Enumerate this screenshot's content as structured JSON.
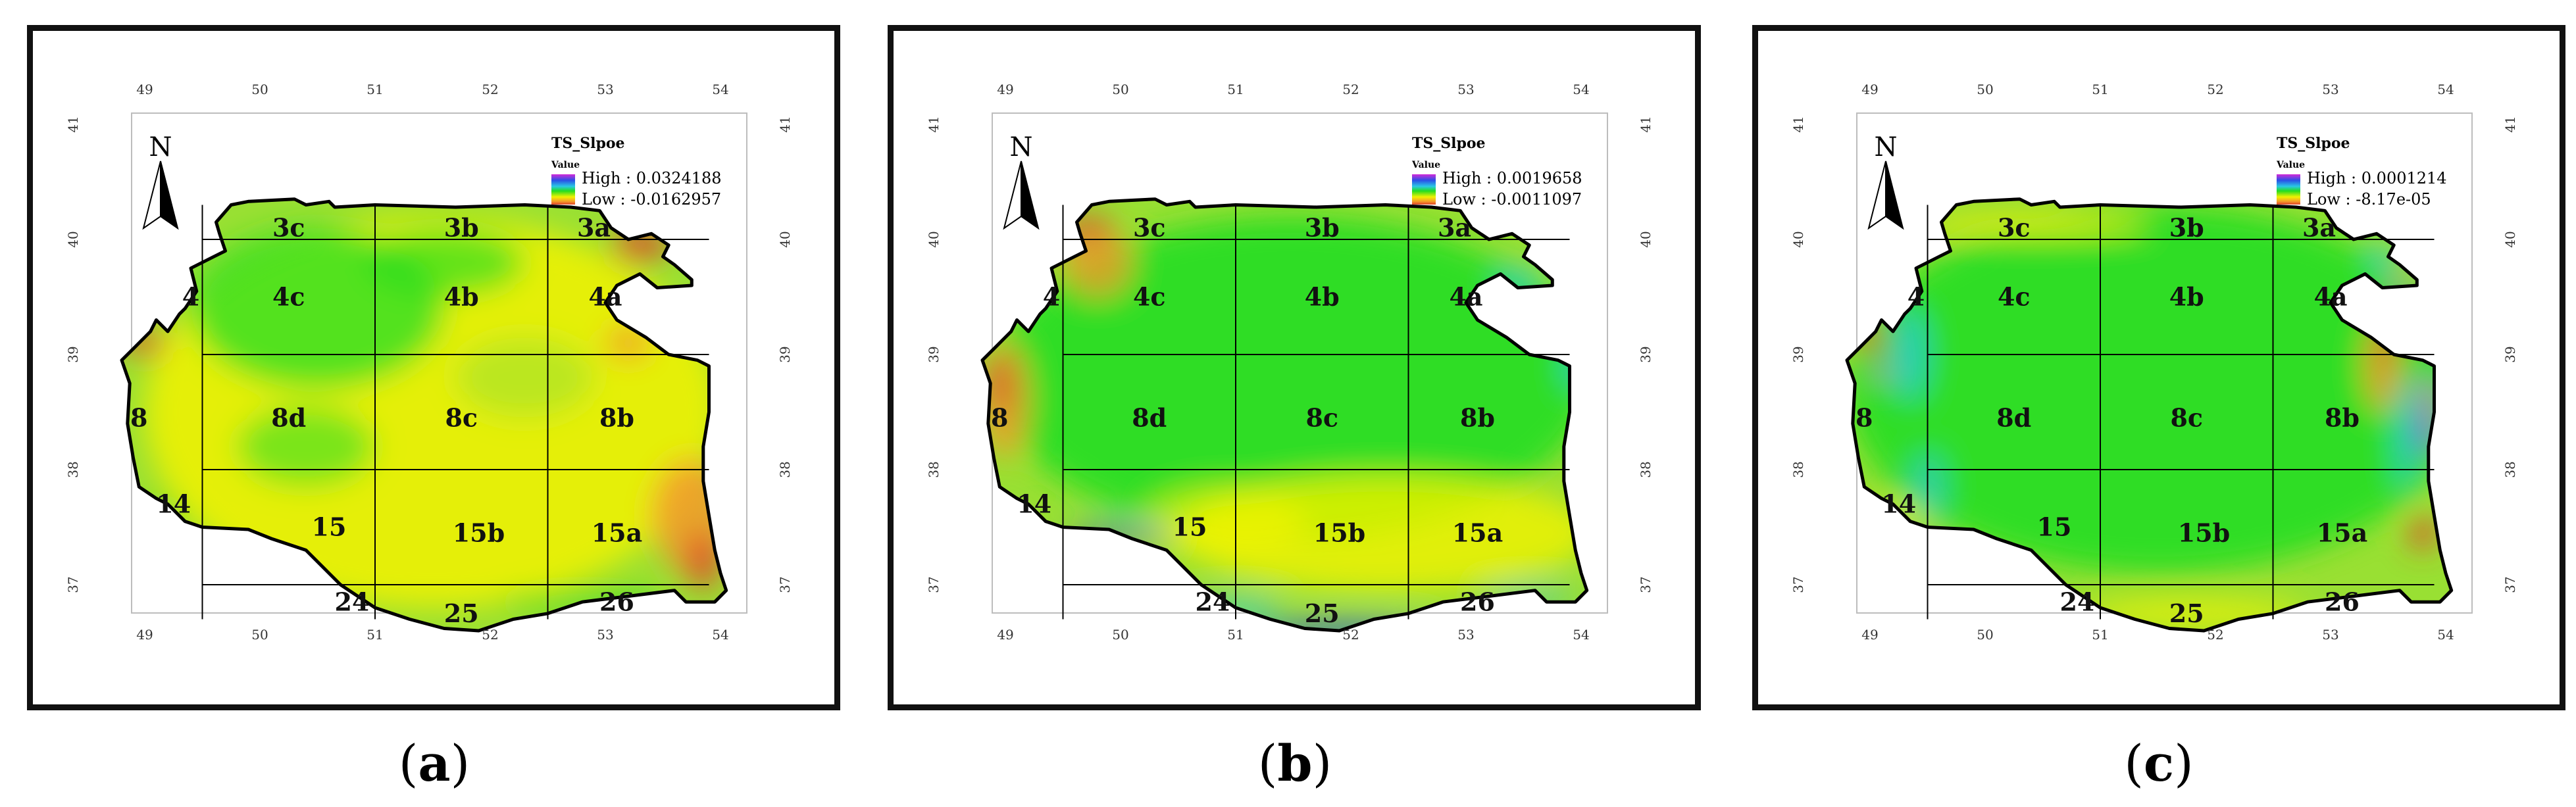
{
  "colors": {
    "green": "#22dd22",
    "lime": "#99e033",
    "yellow": "#f2f200",
    "orange": "#f39a2a",
    "red": "#e0432a",
    "cyan": "#29c9e4",
    "blue": "#2a4fe6",
    "magenta": "#d52ad8",
    "outline": "#000000"
  },
  "axes": {
    "lon_ticks": [
      "49",
      "50",
      "51",
      "52",
      "53",
      "54"
    ],
    "lat_ticks": [
      "41",
      "40",
      "39",
      "38",
      "37"
    ]
  },
  "north_arrow": {
    "label": "N"
  },
  "zones": [
    {
      "label": "3c",
      "lon": 50.25,
      "lat": 40.1
    },
    {
      "label": "3b",
      "lon": 51.75,
      "lat": 40.1
    },
    {
      "label": "3a",
      "lon": 52.9,
      "lat": 40.1
    },
    {
      "label": "4",
      "lon": 49.4,
      "lat": 39.5
    },
    {
      "label": "4c",
      "lon": 50.25,
      "lat": 39.5
    },
    {
      "label": "4b",
      "lon": 51.75,
      "lat": 39.5
    },
    {
      "label": "4a",
      "lon": 53.0,
      "lat": 39.5
    },
    {
      "label": "8",
      "lon": 48.95,
      "lat": 38.45
    },
    {
      "label": "8d",
      "lon": 50.25,
      "lat": 38.45
    },
    {
      "label": "8c",
      "lon": 51.75,
      "lat": 38.45
    },
    {
      "label": "8b",
      "lon": 53.1,
      "lat": 38.45
    },
    {
      "label": "14",
      "lon": 49.25,
      "lat": 37.7
    },
    {
      "label": "15",
      "lon": 50.6,
      "lat": 37.5
    },
    {
      "label": "15b",
      "lon": 51.9,
      "lat": 37.45
    },
    {
      "label": "15a",
      "lon": 53.1,
      "lat": 37.45
    },
    {
      "label": "24",
      "lon": 50.8,
      "lat": 36.85
    },
    {
      "label": "25",
      "lon": 51.75,
      "lat": 36.75
    },
    {
      "label": "26",
      "lon": 53.1,
      "lat": 36.85
    }
  ],
  "panels": [
    {
      "caption_letter": "a",
      "legend": {
        "title": "TS_Slpoe",
        "subtitle": "Value",
        "high": "High : 0.0324188",
        "low": "Low : -0.0162957"
      },
      "patches": [
        {
          "color": "yellow",
          "lon": 51.5,
          "lat": 38.5,
          "rx": 2.5,
          "ry": 1.7,
          "opacity": 0.85
        },
        {
          "color": "green",
          "lon": 50.5,
          "lat": 39.4,
          "rx": 1.1,
          "ry": 0.7,
          "opacity": 0.75
        },
        {
          "color": "green",
          "lon": 51.6,
          "lat": 39.8,
          "rx": 0.7,
          "ry": 0.3,
          "opacity": 0.65
        },
        {
          "color": "green",
          "lon": 50.4,
          "lat": 38.2,
          "rx": 0.6,
          "ry": 0.35,
          "opacity": 0.55
        },
        {
          "color": "lime",
          "lon": 52.3,
          "lat": 38.8,
          "rx": 0.6,
          "ry": 0.35,
          "opacity": 0.55
        },
        {
          "color": "orange",
          "lon": 53.75,
          "lat": 37.6,
          "rx": 0.35,
          "ry": 0.5,
          "opacity": 0.85
        },
        {
          "color": "red",
          "lon": 53.85,
          "lat": 37.2,
          "rx": 0.15,
          "ry": 0.25,
          "opacity": 0.8
        },
        {
          "color": "red",
          "lon": 49.0,
          "lat": 39.1,
          "rx": 0.18,
          "ry": 0.12,
          "opacity": 0.85
        },
        {
          "color": "red",
          "lon": 53.3,
          "lat": 39.95,
          "rx": 0.25,
          "ry": 0.15,
          "opacity": 0.85
        },
        {
          "color": "orange",
          "lon": 53.2,
          "lat": 39.1,
          "rx": 0.2,
          "ry": 0.15,
          "opacity": 0.8
        },
        {
          "color": "green",
          "lon": 49.1,
          "lat": 37.6,
          "rx": 0.2,
          "ry": 0.1,
          "opacity": 0.75
        },
        {
          "color": "green",
          "lon": 52.8,
          "lat": 36.85,
          "rx": 0.7,
          "ry": 0.1,
          "opacity": 0.7
        }
      ]
    },
    {
      "caption_letter": "b",
      "legend": {
        "title": "TS_Slpoe",
        "subtitle": "Value",
        "high": "High : 0.0019658",
        "low": "Low : -0.0011097"
      },
      "patches": [
        {
          "color": "green",
          "lon": 51.5,
          "lat": 38.8,
          "rx": 2.6,
          "ry": 1.4,
          "opacity": 0.9
        },
        {
          "color": "yellow",
          "lon": 52.3,
          "lat": 37.45,
          "rx": 1.8,
          "ry": 0.5,
          "opacity": 0.8
        },
        {
          "color": "yellow",
          "lon": 50.9,
          "lat": 37.55,
          "rx": 0.7,
          "ry": 0.3,
          "opacity": 0.65
        },
        {
          "color": "orange",
          "lon": 49.0,
          "lat": 38.6,
          "rx": 0.2,
          "ry": 0.5,
          "opacity": 0.85
        },
        {
          "color": "red",
          "lon": 48.95,
          "lat": 38.75,
          "rx": 0.1,
          "ry": 0.25,
          "opacity": 0.8
        },
        {
          "color": "orange",
          "lon": 49.8,
          "lat": 39.8,
          "rx": 0.3,
          "ry": 0.3,
          "opacity": 0.8
        },
        {
          "color": "red",
          "lon": 49.7,
          "lat": 40.1,
          "rx": 0.25,
          "ry": 0.1,
          "opacity": 0.8
        },
        {
          "color": "blue",
          "lon": 51.9,
          "lat": 36.6,
          "rx": 0.8,
          "ry": 0.08,
          "opacity": 0.85
        },
        {
          "color": "cyan",
          "lon": 51.0,
          "lat": 36.8,
          "rx": 0.4,
          "ry": 0.08,
          "opacity": 0.8
        },
        {
          "color": "cyan",
          "lon": 53.55,
          "lat": 36.9,
          "rx": 0.4,
          "ry": 0.06,
          "opacity": 0.8
        },
        {
          "color": "blue",
          "lon": 50.0,
          "lat": 37.45,
          "rx": 0.45,
          "ry": 0.06,
          "opacity": 0.8
        },
        {
          "color": "cyan",
          "lon": 53.95,
          "lat": 38.9,
          "rx": 0.08,
          "ry": 0.2,
          "opacity": 0.85
        },
        {
          "color": "cyan",
          "lon": 53.45,
          "lat": 39.65,
          "rx": 0.2,
          "ry": 0.08,
          "opacity": 0.85
        }
      ]
    },
    {
      "caption_letter": "c",
      "legend": {
        "title": "TS_Slpoe",
        "subtitle": "Value",
        "high": "High : 0.0001214",
        "low": "Low : -8.17e-05"
      },
      "patches": [
        {
          "color": "green",
          "lon": 51.5,
          "lat": 38.7,
          "rx": 2.7,
          "ry": 1.6,
          "opacity": 0.9
        },
        {
          "color": "yellow",
          "lon": 50.4,
          "lat": 40.12,
          "rx": 1.0,
          "ry": 0.08,
          "opacity": 0.9
        },
        {
          "color": "yellow",
          "lon": 51.8,
          "lat": 36.75,
          "rx": 1.0,
          "ry": 0.12,
          "opacity": 0.8
        },
        {
          "color": "yellow",
          "lon": 49.3,
          "lat": 37.6,
          "rx": 0.25,
          "ry": 0.1,
          "opacity": 0.65
        },
        {
          "color": "orange",
          "lon": 53.45,
          "lat": 38.9,
          "rx": 0.15,
          "ry": 0.4,
          "opacity": 0.85
        },
        {
          "color": "red",
          "lon": 53.5,
          "lat": 39.1,
          "rx": 0.08,
          "ry": 0.15,
          "opacity": 0.85
        },
        {
          "color": "magenta",
          "lon": 53.85,
          "lat": 38.5,
          "rx": 0.07,
          "ry": 0.35,
          "opacity": 0.9
        },
        {
          "color": "blue",
          "lon": 53.8,
          "lat": 38.3,
          "rx": 0.05,
          "ry": 0.2,
          "opacity": 0.9
        },
        {
          "color": "cyan",
          "lon": 53.65,
          "lat": 38.3,
          "rx": 0.08,
          "ry": 0.5,
          "opacity": 0.8
        },
        {
          "color": "red",
          "lon": 53.8,
          "lat": 37.45,
          "rx": 0.12,
          "ry": 0.15,
          "opacity": 0.85
        },
        {
          "color": "magenta",
          "lon": 53.6,
          "lat": 39.6,
          "rx": 0.1,
          "ry": 0.06,
          "opacity": 0.9
        },
        {
          "color": "cyan",
          "lon": 53.45,
          "lat": 39.85,
          "rx": 0.1,
          "ry": 0.1,
          "opacity": 0.85
        },
        {
          "color": "red",
          "lon": 49.0,
          "lat": 39.15,
          "rx": 0.12,
          "ry": 0.12,
          "opacity": 0.85
        },
        {
          "color": "cyan",
          "lon": 49.35,
          "lat": 39.0,
          "rx": 0.15,
          "ry": 0.4,
          "opacity": 0.75
        },
        {
          "color": "magenta",
          "lon": 49.1,
          "lat": 38.85,
          "rx": 0.05,
          "ry": 0.1,
          "opacity": 0.9
        },
        {
          "color": "cyan",
          "lon": 49.5,
          "lat": 37.85,
          "rx": 0.15,
          "ry": 0.3,
          "opacity": 0.65
        }
      ]
    }
  ]
}
